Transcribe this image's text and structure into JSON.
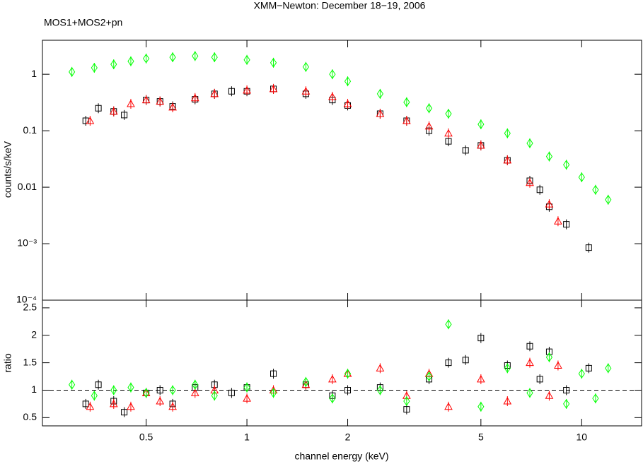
{
  "chart_data": [
    {
      "type": "scatter",
      "title": "XMM−Newton: December 18−19, 2006",
      "subtitle": "MOS1+MOS2+pn",
      "y_label": "counts/s/keV",
      "x_log": true,
      "y_log": true,
      "xlim": [
        0.245,
        15.1
      ],
      "ylim": [
        0.0001,
        4
      ],
      "yticks": [
        1,
        0.1,
        0.01,
        {
          "value": 0.001,
          "label": "10⁻³"
        },
        {
          "value": 0.0001,
          "label": "10⁻⁴"
        }
      ],
      "series": [
        {
          "color": "#000000",
          "marker": "square",
          "x": [
            0.33,
            0.36,
            0.4,
            0.43,
            0.5,
            0.55,
            0.6,
            0.7,
            0.8,
            0.9,
            1,
            1.2,
            1.5,
            1.8,
            2,
            2.5,
            3,
            3.5,
            4,
            4.5,
            5,
            6,
            7,
            7.5,
            8,
            9,
            10.5
          ],
          "values": [
            0.15,
            0.25,
            0.22,
            0.19,
            0.35,
            0.33,
            0.27,
            0.36,
            0.45,
            0.5,
            0.5,
            0.55,
            0.45,
            0.35,
            0.28,
            0.2,
            0.15,
            0.1,
            0.065,
            0.045,
            0.055,
            0.03,
            0.013,
            0.009,
            0.0045,
            0.0022,
            0.00085
          ]
        },
        {
          "color": "#ff0000",
          "marker": "triangle",
          "x": [
            0.34,
            0.4,
            0.45,
            0.5,
            0.55,
            0.6,
            0.7,
            0.8,
            1,
            1.2,
            1.5,
            1.8,
            2,
            2.5,
            3,
            3.5,
            4,
            5,
            6,
            7,
            8,
            8.5
          ],
          "values": [
            0.15,
            0.22,
            0.3,
            0.35,
            0.33,
            0.26,
            0.38,
            0.45,
            0.52,
            0.55,
            0.5,
            0.4,
            0.3,
            0.2,
            0.15,
            0.12,
            0.09,
            0.055,
            0.03,
            0.012,
            0.005,
            0.0025
          ]
        },
        {
          "color": "#00ff00",
          "marker": "diamond",
          "x": [
            0.3,
            0.35,
            0.4,
            0.45,
            0.5,
            0.6,
            0.7,
            0.8,
            1,
            1.2,
            1.5,
            1.8,
            2,
            2.5,
            3,
            3.5,
            4,
            5,
            6,
            7,
            8,
            9,
            10,
            11,
            12
          ],
          "values": [
            1.1,
            1.3,
            1.5,
            1.7,
            1.9,
            2.0,
            2.1,
            2.0,
            1.8,
            1.6,
            1.35,
            1.0,
            0.75,
            0.45,
            0.32,
            0.25,
            0.2,
            0.13,
            0.09,
            0.06,
            0.035,
            0.025,
            0.015,
            0.009,
            0.006
          ]
        }
      ]
    },
    {
      "type": "scatter",
      "x_label": "channel energy (keV)",
      "y_label": "ratio",
      "x_log": true,
      "xlim": [
        0.245,
        15.1
      ],
      "ylim": [
        0.35,
        2.64
      ],
      "xticks": [
        0.5,
        1,
        2,
        5,
        10
      ],
      "yticks": [
        0.5,
        1,
        1.5,
        2,
        2.5
      ],
      "reference_line": 1,
      "series": [
        {
          "color": "#000000",
          "marker": "square",
          "x": [
            0.33,
            0.36,
            0.4,
            0.43,
            0.5,
            0.55,
            0.6,
            0.7,
            0.8,
            0.9,
            1,
            1.2,
            1.5,
            1.8,
            2,
            2.5,
            3,
            3.5,
            4,
            4.5,
            5,
            6,
            7,
            7.5,
            8,
            9,
            10.5
          ],
          "values": [
            0.75,
            1.1,
            0.8,
            0.6,
            0.95,
            1.0,
            0.75,
            1.05,
            1.1,
            0.95,
            1.05,
            1.3,
            1.1,
            0.9,
            1.0,
            1.05,
            0.65,
            1.2,
            1.5,
            1.55,
            1.95,
            1.45,
            1.8,
            1.2,
            1.7,
            1.0,
            1.4
          ]
        },
        {
          "color": "#ff0000",
          "marker": "triangle",
          "x": [
            0.34,
            0.4,
            0.45,
            0.5,
            0.55,
            0.6,
            0.7,
            0.8,
            1,
            1.2,
            1.5,
            1.8,
            2,
            2.5,
            3,
            3.5,
            4,
            5,
            6,
            7,
            8,
            8.5
          ],
          "values": [
            0.7,
            0.75,
            0.7,
            0.95,
            0.8,
            0.7,
            0.95,
            1.0,
            0.85,
            1.0,
            1.1,
            1.2,
            1.3,
            1.4,
            0.9,
            1.3,
            0.7,
            1.2,
            0.8,
            1.5,
            0.9,
            1.45
          ]
        },
        {
          "color": "#00ff00",
          "marker": "diamond",
          "x": [
            0.3,
            0.35,
            0.4,
            0.45,
            0.5,
            0.6,
            0.7,
            0.8,
            1,
            1.2,
            1.5,
            1.8,
            2,
            2.5,
            3,
            3.5,
            4,
            5,
            6,
            7,
            8,
            9,
            10,
            11,
            12
          ],
          "values": [
            1.1,
            0.9,
            1.0,
            1.05,
            0.95,
            1.0,
            1.1,
            0.9,
            1.05,
            0.95,
            1.15,
            0.85,
            1.3,
            1.0,
            0.8,
            1.25,
            2.2,
            0.7,
            1.4,
            0.95,
            1.6,
            0.75,
            1.3,
            0.85,
            1.4
          ]
        }
      ]
    }
  ]
}
